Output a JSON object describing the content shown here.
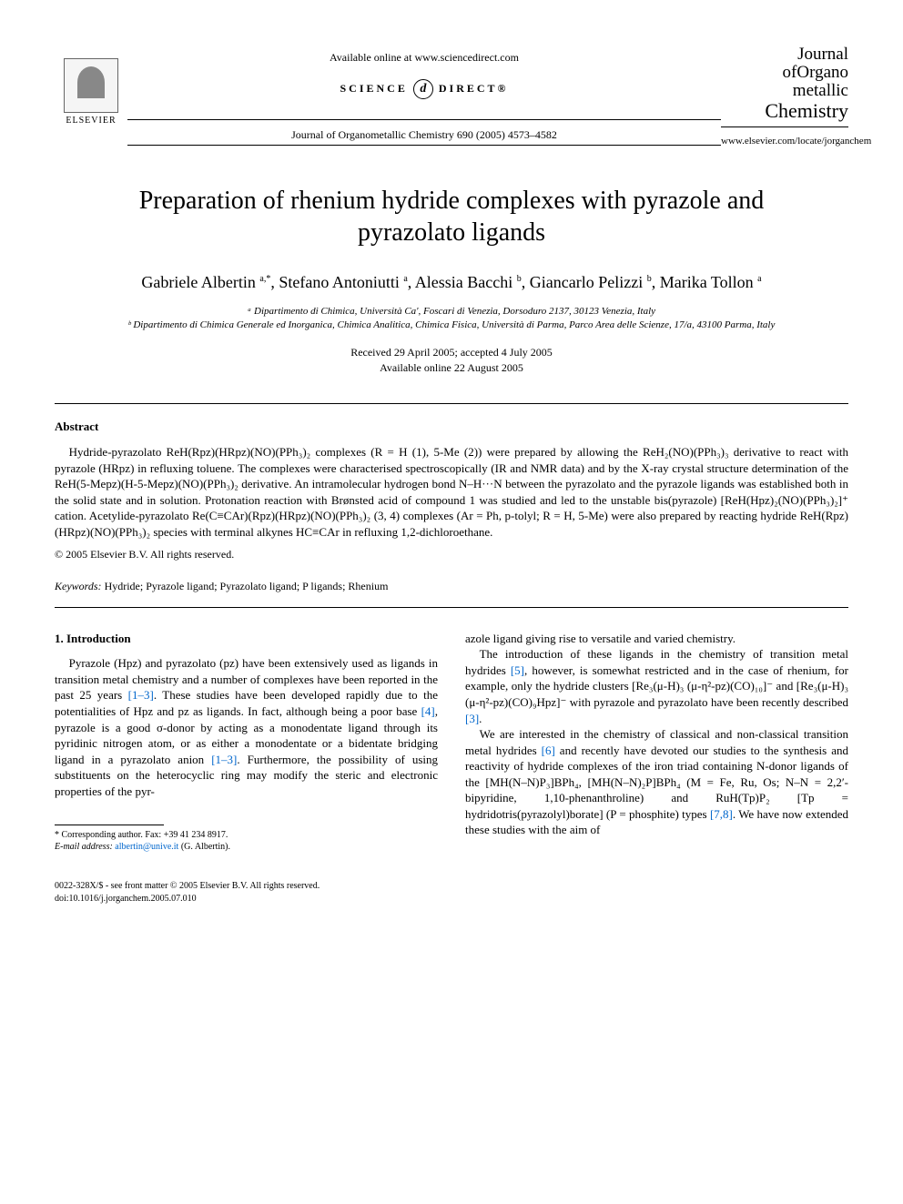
{
  "header": {
    "publisher_name": "ELSEVIER",
    "available_text": "Available online at www.sciencedirect.com",
    "sciencedirect_left": "SCIENCE",
    "sciencedirect_right": "DIRECT®",
    "sciencedirect_d": "d",
    "journal_ref": "Journal of Organometallic Chemistry 690 (2005) 4573–4582",
    "journal_line1": "Journal",
    "journal_line2": "ofOrgano",
    "journal_line3": "metallic",
    "journal_line4": "Chemistry",
    "locate_url": "www.elsevier.com/locate/jorganchem"
  },
  "paper": {
    "title": "Preparation of rhenium hydride complexes with pyrazole and pyrazolato ligands",
    "authors_html": "Gabriele Albertin <span class='sup'>a,*</span>, Stefano Antoniutti <span class='sup'>a</span>, Alessia Bacchi <span class='sup'>b</span>, Giancarlo Pelizzi <span class='sup'>b</span>, Marika Tollon <span class='sup'>a</span>",
    "affil_a": "ᵃ Dipartimento di Chimica, Università Ca', Foscari di Venezia, Dorsoduro 2137, 30123 Venezia, Italy",
    "affil_b": "ᵇ Dipartimento di Chimica Generale ed Inorganica, Chimica Analitica, Chimica Fisica, Università di Parma, Parco Area delle Scienze, 17/a, 43100 Parma, Italy",
    "received": "Received 29 April 2005; accepted 4 July 2005",
    "available_online": "Available online 22 August 2005"
  },
  "abstract": {
    "heading": "Abstract",
    "body": "Hydride-pyrazolato ReH(Rpz)(HRpz)(NO)(PPh₃)₂ complexes (R = H (1), 5-Me (2)) were prepared by allowing the ReH₂(NO)(PPh₃)₃ derivative to react with pyrazole (HRpz) in refluxing toluene. The complexes were characterised spectroscopically (IR and NMR data) and by the X-ray crystal structure determination of the ReH(5-Mepz)(H-5-Mepz)(NO)(PPh₃)₂ derivative. An intramolecular hydrogen bond N–H···N between the pyrazolato and the pyrazole ligands was established both in the solid state and in solution. Protonation reaction with Brønsted acid of compound 1 was studied and led to the unstable bis(pyrazole) [ReH(Hpz)₂(NO)(PPh₃)₂]⁺ cation. Acetylide-pyrazolato Re(C≡CAr)(Rpz)(HRpz)(NO)(PPh₃)₂ (3, 4) complexes (Ar = Ph, p-tolyl; R = H, 5-Me) were also prepared by reacting hydride ReH(Rpz)(HRpz)(NO)(PPh₃)₂ species with terminal alkynes HC≡CAr in refluxing 1,2-dichloroethane.",
    "copyright": "© 2005 Elsevier B.V. All rights reserved."
  },
  "keywords": {
    "label": "Keywords:",
    "list": "Hydride; Pyrazole ligand; Pyrazolato ligand; P ligands; Rhenium"
  },
  "intro": {
    "heading": "1. Introduction",
    "para1": "Pyrazole (Hpz) and pyrazolato (pz) have been extensively used as ligands in transition metal chemistry and a number of complexes have been reported in the past 25 years <span class='refnum'>[1–3]</span>. These studies have been developed rapidly due to the potentialities of Hpz and pz as ligands. In fact, although being a poor base <span class='refnum'>[4]</span>, pyrazole is a good σ-donor by acting as a monodentate ligand through its pyridinic nitrogen atom, or as either a monodentate or a bidentate bridging ligand in a pyrazolato anion <span class='refnum'>[1–3]</span>. Furthermore, the possibility of using substituents on the heterocyclic ring may modify the steric and electronic properties of the pyr-",
    "para1b": "azole ligand giving rise to versatile and varied chemistry.",
    "para2": "The introduction of these ligands in the chemistry of transition metal hydrides <span class='refnum'>[5]</span>, however, is somewhat restricted and in the case of rhenium, for example, only the hydride clusters [Re₃(μ-H)₃ (μ-η²-pz)(CO)₁₀]⁻ and [Re₃(μ-H)₃ (μ-η²-pz)(CO)₉Hpz]⁻ with pyrazole and pyrazolato have been recently described <span class='refnum'>[3]</span>.",
    "para3": "We are interested in the chemistry of classical and non-classical transition metal hydrides <span class='refnum'>[6]</span> and recently have devoted our studies to the synthesis and reactivity of hydride complexes of the iron triad containing N-donor ligands of the [MH(N–N)P₃]BPh₄, [MH(N–N)₂P]BPh₄ (M = Fe, Ru, Os; N–N = 2,2′-bipyridine, 1,10-phenanthroline) and RuH(Tp)P₂ [Tp = hydridotris(pyrazolyl)borate] (P = phosphite) types <span class='refnum'>[7,8]</span>. We have now extended these studies with the aim of"
  },
  "footnotes": {
    "corr": "* Corresponding author. Fax: +39 41 234 8917.",
    "email_label": "E-mail address:",
    "email": "albertin@unive.it",
    "email_who": "(G. Albertin)."
  },
  "footer": {
    "front_matter": "0022-328X/$ - see front matter © 2005 Elsevier B.V. All rights reserved.",
    "doi": "doi:10.1016/j.jorganchem.2005.07.010"
  },
  "colors": {
    "link": "#0066cc",
    "text": "#000000",
    "bg": "#ffffff"
  }
}
